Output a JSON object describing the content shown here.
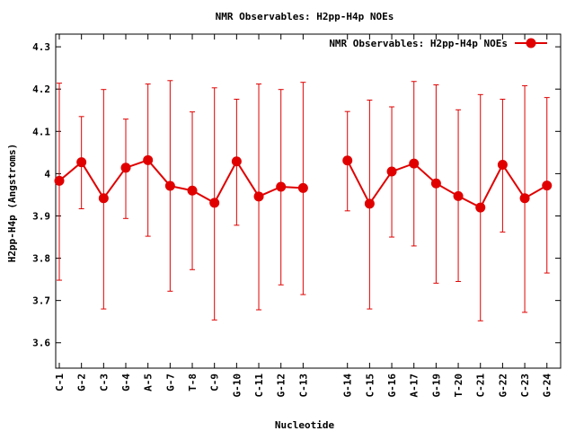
{
  "chart_data": {
    "type": "line",
    "title": "NMR Observables: H2pp-H4p NOEs",
    "xlabel": "Nucleotide",
    "ylabel": "H2pp-H4p (Angstroms)",
    "ylim": [
      3.54,
      4.33
    ],
    "yticks": [
      3.6,
      3.7,
      3.8,
      3.9,
      4,
      4.1,
      4.2,
      4.3
    ],
    "ytick_labels": [
      "3.6",
      "3.7",
      "3.8",
      "3.9",
      "4",
      "4.1",
      "4.2",
      "4.3"
    ],
    "legend_position": "top-right",
    "grid": false,
    "color": "#e00000",
    "series": [
      {
        "name": "NMR Observables: H2pp-H4p NOEs",
        "segments": [
          {
            "categories": [
              "C-1",
              "G-2",
              "C-3",
              "G-4",
              "A-5",
              "G-7",
              "T-8",
              "C-9",
              "G-10",
              "C-11",
              "G-12",
              "C-13"
            ],
            "positions": [
              1,
              2,
              3,
              4,
              5,
              6,
              7,
              8,
              9,
              10,
              11,
              12
            ],
            "values": [
              3.983,
              4.027,
              3.942,
              4.014,
              4.032,
              3.971,
              3.96,
              3.931,
              4.029,
              3.946,
              3.969,
              3.966
            ],
            "err_low": [
              3.748,
              3.917,
              3.68,
              3.894,
              3.852,
              3.722,
              3.773,
              3.654,
              3.878,
              3.678,
              3.737,
              3.714
            ],
            "err_high": [
              4.214,
              4.135,
              4.199,
              4.129,
              4.212,
              4.22,
              4.146,
              4.203,
              4.176,
              4.212,
              4.199,
              4.216
            ]
          },
          {
            "categories": [
              "G-14",
              "C-15",
              "G-16",
              "A-17",
              "G-19",
              "T-20",
              "C-21",
              "G-22",
              "C-23",
              "G-24"
            ],
            "positions": [
              14,
              15,
              16,
              17,
              18,
              19,
              20,
              21,
              22,
              23
            ],
            "values": [
              4.031,
              3.929,
              4.005,
              4.024,
              3.977,
              3.947,
              3.92,
              4.021,
              3.942,
              3.972
            ],
            "err_low": [
              3.912,
              3.68,
              3.85,
              3.829,
              3.741,
              3.745,
              3.652,
              3.862,
              3.672,
              3.765
            ],
            "err_high": [
              4.147,
              4.174,
              4.158,
              4.218,
              4.21,
              4.151,
              4.187,
              4.176,
              4.208,
              4.18
            ]
          }
        ]
      }
    ]
  }
}
